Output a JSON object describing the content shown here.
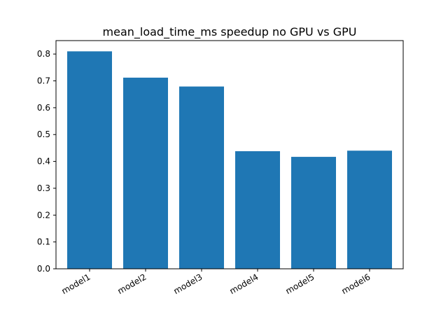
{
  "chart_data": {
    "type": "bar",
    "title": "mean_load_time_ms speedup no GPU vs GPU",
    "xlabel": "",
    "ylabel": "",
    "categories": [
      "model1",
      "model2",
      "model3",
      "model4",
      "model5",
      "model6"
    ],
    "values": [
      0.81,
      0.712,
      0.679,
      0.438,
      0.417,
      0.44
    ],
    "ylim": [
      0,
      0.85
    ],
    "yticks": [
      0.0,
      0.1,
      0.2,
      0.3,
      0.4,
      0.5,
      0.6,
      0.7,
      0.8
    ],
    "ytick_labels": [
      "0.0",
      "0.1",
      "0.2",
      "0.3",
      "0.4",
      "0.5",
      "0.6",
      "0.7",
      "0.8"
    ],
    "grid": false,
    "bar_color": "#1f77b4"
  }
}
